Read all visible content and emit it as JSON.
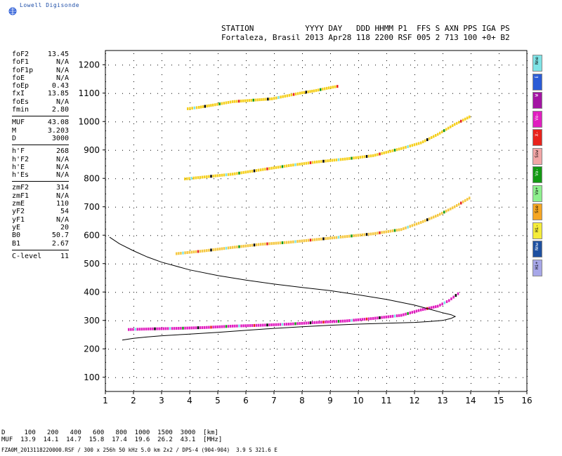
{
  "logo": {
    "text": "Lowell Digisonde"
  },
  "header": {
    "line1": "STATION           YYYY DAY   DDD HHMM P1  FFS S AXN PPS IGA PS",
    "line2": "Fortaleza, Brasil 2013 Apr28 118 2200 RSF 005 2 713 100 +0+ B2"
  },
  "params": [
    {
      "k": "foF2",
      "v": "13.45"
    },
    {
      "k": "foF1",
      "v": "N/A"
    },
    {
      "k": "foF1p",
      "v": "N/A"
    },
    {
      "k": "foE",
      "v": "N/A"
    },
    {
      "k": "foEp",
      "v": "0.43"
    },
    {
      "k": "fxI",
      "v": "13.85"
    },
    {
      "k": "foEs",
      "v": "N/A"
    },
    {
      "k": "fmin",
      "v": "2.80"
    },
    {
      "sep": true
    },
    {
      "k": "MUF",
      "v": "43.08"
    },
    {
      "k": "M",
      "v": "3.203"
    },
    {
      "k": "D",
      "v": "3000"
    },
    {
      "sep": true
    },
    {
      "k": "h'F",
      "v": "268"
    },
    {
      "k": "h'F2",
      "v": "N/A"
    },
    {
      "k": "h'E",
      "v": "N/A"
    },
    {
      "k": "h'Es",
      "v": "N/A"
    },
    {
      "sep": true
    },
    {
      "k": "zmF2",
      "v": "314"
    },
    {
      "k": "zmF1",
      "v": "N/A"
    },
    {
      "k": "zmE",
      "v": "110"
    },
    {
      "k": "yF2",
      "v": "54"
    },
    {
      "k": "yF1",
      "v": "N/A"
    },
    {
      "k": "yE",
      "v": "20"
    },
    {
      "k": "B0",
      "v": "50.7"
    },
    {
      "k": "B1",
      "v": "2.67"
    },
    {
      "sep": true
    },
    {
      "k": "C-level",
      "v": "11"
    }
  ],
  "legend": [
    {
      "label": "Nne",
      "color": "#7ee3e6"
    },
    {
      "label": "E",
      "color": "#2a5bd6"
    },
    {
      "label": "W",
      "color": "#a314a3"
    },
    {
      "label": "Vo-",
      "color": "#e01fbf"
    },
    {
      "label": "X-",
      "color": "#e8231c"
    },
    {
      "label": "Ssw",
      "color": "#f2a6a6"
    },
    {
      "label": "Vo-",
      "color": "#139913"
    },
    {
      "label": "Vo+",
      "color": "#8ef08e"
    },
    {
      "label": "Sse",
      "color": "#f5a623"
    },
    {
      "label": "Hi-",
      "color": "#f5ec3a"
    },
    {
      "label": "Nnw",
      "color": "#1e50a0"
    },
    {
      "label": "Hi+",
      "color": "#a7a7e8"
    }
  ],
  "bottom": {
    "line1": "D     100   200   400   600   800  1000  1500  3000  [km]",
    "line2": "MUF  13.9  14.1  14.7  15.8  17.4  19.6  26.2  43.1  [MHz]"
  },
  "footer": {
    "text": "FZA0M_2013118220000.RSF / 300 x 256h 50 kHz 5.0 km 2x2 / DPS-4 (904-904)  3.9 S 321.6 E"
  },
  "chart_data": {
    "type": "scatter",
    "title": "",
    "xlabel": "",
    "ylabel": "",
    "xlim": [
      1,
      16
    ],
    "ylim": [
      50,
      1250
    ],
    "x_ticks": [
      1,
      2,
      3,
      4,
      5,
      6,
      7,
      8,
      9,
      10,
      11,
      12,
      13,
      14,
      15,
      16
    ],
    "y_ticks": [
      100,
      200,
      300,
      400,
      500,
      600,
      700,
      800,
      900,
      1000,
      1100,
      1200
    ],
    "grid": true,
    "traces": [
      {
        "name": "O-trace",
        "color": "#e01fbf",
        "x": [
          1.8,
          2.5,
          3.5,
          4.5,
          5.5,
          6.5,
          7.5,
          8.5,
          9.5,
          10.5,
          11.5,
          12.2,
          12.8,
          13.2,
          13.6
        ],
        "y": [
          268,
          270,
          272,
          275,
          280,
          283,
          287,
          293,
          298,
          307,
          318,
          337,
          350,
          370,
          400
        ]
      },
      {
        "name": "2nd hop",
        "color": "#f5c842",
        "x": [
          3.5,
          4.5,
          5.5,
          6.5,
          7.5,
          8.5,
          9.5,
          10.5,
          11.5,
          12.2,
          12.8,
          13.4,
          14
        ],
        "y": [
          535,
          545,
          557,
          568,
          575,
          585,
          595,
          605,
          620,
          645,
          670,
          700,
          735
        ]
      },
      {
        "name": "3rd hop",
        "color": "#f5d020",
        "x": [
          3.8,
          4.5,
          5.5,
          6.5,
          7.5,
          8.5,
          9.5,
          10.5,
          11.5,
          12.2,
          12.8,
          13.4,
          14
        ],
        "y": [
          798,
          805,
          815,
          830,
          845,
          858,
          868,
          880,
          905,
          925,
          955,
          990,
          1020
        ]
      },
      {
        "name": "4th hop",
        "color": "#f5d020",
        "x": [
          3.9,
          4.3,
          4.8,
          5.5,
          6.9,
          7.9,
          8.4,
          9.0,
          9.3
        ],
        "y": [
          1045,
          1050,
          1058,
          1070,
          1080,
          1100,
          1108,
          1120,
          1125
        ]
      }
    ],
    "profile": {
      "x": [
        1.15,
        1.5,
        2,
        2.5,
        3,
        4,
        5,
        6,
        7,
        8,
        9,
        10,
        11,
        12,
        12.6,
        13.0,
        13.3,
        13.45,
        13.3,
        13.0,
        12.5,
        12,
        11,
        10,
        9,
        8,
        7,
        6,
        5,
        4,
        3,
        2.5,
        2,
        1.6
      ],
      "y": [
        593,
        570,
        545,
        523,
        505,
        478,
        458,
        442,
        428,
        416,
        405,
        390,
        374,
        354,
        338,
        327,
        320,
        314,
        307,
        300,
        296,
        293,
        290,
        287,
        283,
        278,
        272,
        265,
        258,
        252,
        246,
        242,
        237,
        231
      ]
    }
  }
}
